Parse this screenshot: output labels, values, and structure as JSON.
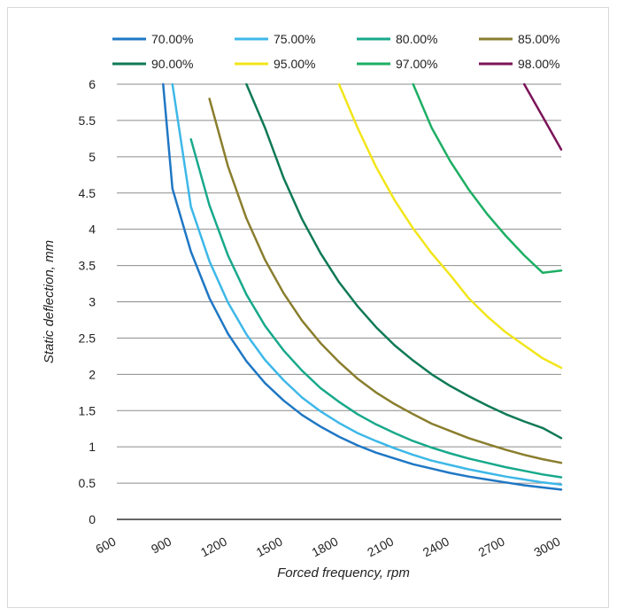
{
  "chart_data": {
    "type": "line",
    "title": "",
    "xlabel": "Forced frequency, rpm",
    "ylabel": "Static deflection, mm",
    "xlim": [
      600,
      3000
    ],
    "ylim": [
      0,
      6
    ],
    "x_ticks": [
      "600",
      "900",
      "1200",
      "1500",
      "1800",
      "2100",
      "2400",
      "2700",
      "3000"
    ],
    "y_ticks": [
      "0",
      "0.5",
      "1",
      "1.5",
      "2",
      "2.5",
      "3",
      "3.5",
      "4",
      "4.5",
      "5",
      "5.5",
      "6"
    ],
    "grid": "horizontal",
    "legend_position": "top",
    "x": [
      850,
      900,
      1000,
      1100,
      1200,
      1300,
      1400,
      1500,
      1600,
      1700,
      1800,
      1900,
      2000,
      2100,
      2200,
      2300,
      2400,
      2500,
      2600,
      2700,
      2800,
      2900,
      3000
    ],
    "series": [
      {
        "name": "70.00%",
        "color": "#1F77C4",
        "values": [
          6.0,
          4.56,
          3.69,
          3.05,
          2.56,
          2.18,
          1.88,
          1.64,
          1.44,
          1.28,
          1.14,
          1.02,
          0.92,
          0.84,
          0.76,
          0.7,
          0.64,
          0.59,
          0.55,
          0.51,
          0.47,
          0.44,
          0.41
        ]
      },
      {
        "name": "75.00%",
        "color": "#3DB8E8",
        "values": [
          null,
          6.0,
          4.31,
          3.56,
          2.99,
          2.55,
          2.2,
          1.92,
          1.68,
          1.49,
          1.33,
          1.19,
          1.08,
          0.98,
          0.89,
          0.81,
          0.75,
          0.69,
          0.64,
          0.59,
          0.55,
          0.51,
          0.48
        ]
      },
      {
        "name": "80.00%",
        "color": "#18A98B",
        "values": [
          null,
          null,
          5.24,
          4.33,
          3.64,
          3.1,
          2.67,
          2.33,
          2.05,
          1.81,
          1.62,
          1.45,
          1.31,
          1.19,
          1.08,
          0.99,
          0.91,
          0.84,
          0.78,
          0.72,
          0.67,
          0.62,
          0.58
        ]
      },
      {
        "name": "85.00%",
        "color": "#8A7E2E",
        "values": [
          null,
          null,
          null,
          5.8,
          4.87,
          4.15,
          3.58,
          3.12,
          2.74,
          2.43,
          2.17,
          1.94,
          1.75,
          1.59,
          1.45,
          1.32,
          1.22,
          1.12,
          1.04,
          0.96,
          0.89,
          0.83,
          0.78
        ]
      },
      {
        "name": "90.00%",
        "color": "#0F7A55",
        "values": [
          null,
          null,
          null,
          null,
          null,
          6.0,
          5.4,
          4.71,
          4.14,
          3.67,
          3.27,
          2.94,
          2.65,
          2.4,
          2.19,
          2.0,
          1.84,
          1.7,
          1.57,
          1.45,
          1.35,
          1.26,
          1.12
        ]
      },
      {
        "name": "95.00%",
        "color": "#F2E51A",
        "values": [
          null,
          null,
          null,
          null,
          null,
          null,
          null,
          null,
          null,
          null,
          6.0,
          5.4,
          4.86,
          4.4,
          4.01,
          3.67,
          3.37,
          3.05,
          2.8,
          2.58,
          2.4,
          2.22,
          2.09
        ]
      },
      {
        "name": "97.00%",
        "color": "#1DAF64",
        "values": [
          null,
          null,
          null,
          null,
          null,
          null,
          null,
          null,
          null,
          null,
          null,
          null,
          null,
          null,
          6.0,
          5.4,
          4.94,
          4.55,
          4.21,
          3.91,
          3.64,
          3.4,
          3.43
        ]
      },
      {
        "name": "98.00%",
        "color": "#7B1458",
        "values": [
          null,
          null,
          null,
          null,
          null,
          null,
          null,
          null,
          null,
          null,
          null,
          null,
          null,
          null,
          null,
          null,
          null,
          null,
          null,
          null,
          6.0,
          5.55,
          5.1
        ]
      }
    ]
  }
}
